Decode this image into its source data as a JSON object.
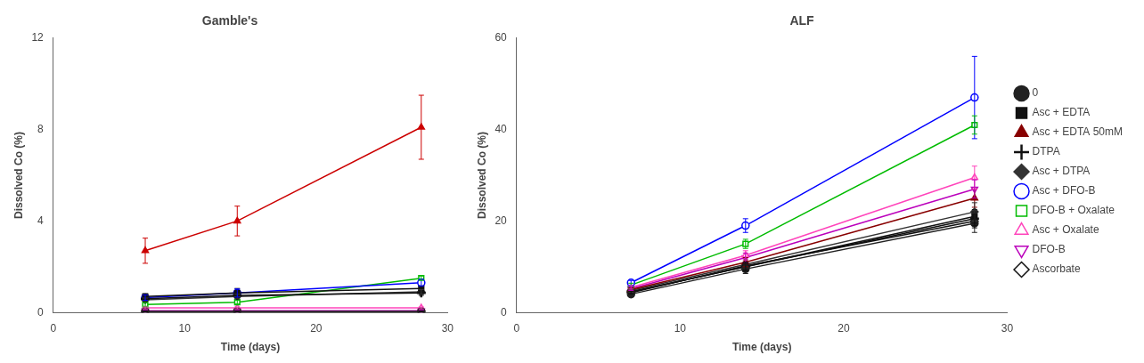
{
  "chart_data": [
    {
      "type": "line",
      "title": "Gamble's",
      "x_label": "Time (days)",
      "y_label": "Dissolved Co (%)",
      "xlim": [
        0,
        30
      ],
      "ylim": [
        0,
        12
      ],
      "xticks": [
        0,
        10,
        20,
        30
      ],
      "yticks": [
        0,
        4,
        8,
        12
      ],
      "grid": false,
      "x": [
        7,
        14,
        28
      ],
      "series": [
        {
          "name": "0",
          "color": "#222222",
          "marker": "circle",
          "values": [
            0.05,
            0.05,
            0.05
          ],
          "errors": [
            0.02,
            0.02,
            0.02
          ]
        },
        {
          "name": "Asc + EDTA",
          "color": "#111111",
          "marker": "square",
          "values": [
            0.7,
            0.85,
            1.05
          ],
          "errors": [
            0.12,
            0.2,
            0.1
          ]
        },
        {
          "name": "Asc + EDTA 50mM",
          "color": "#cc0000",
          "marker": "triangle",
          "values": [
            2.7,
            4.0,
            8.1
          ],
          "errors": [
            0.55,
            0.65,
            1.4
          ]
        },
        {
          "name": "DTPA",
          "color": "#111111",
          "marker": "plus",
          "values": [
            0.6,
            0.75,
            0.85
          ],
          "errors": [
            0.1,
            0.12,
            0.1
          ]
        },
        {
          "name": "Asc + DTPA",
          "color": "#333333",
          "marker": "diamond",
          "values": [
            0.55,
            0.7,
            0.9
          ],
          "errors": [
            0.08,
            0.1,
            0.1
          ]
        },
        {
          "name": "Asc + DFO-B",
          "color": "#0000ff",
          "marker": "open-circle",
          "values": [
            0.65,
            0.85,
            1.3
          ],
          "errors": [
            0.12,
            0.18,
            0.15
          ]
        },
        {
          "name": "DFO-B + Oxalate",
          "color": "#00bb00",
          "marker": "open-square",
          "values": [
            0.35,
            0.45,
            1.5
          ],
          "errors": [
            0.08,
            0.08,
            0.1
          ]
        },
        {
          "name": "Asc + Oxalate",
          "color": "#ff44bb",
          "marker": "open-triangle",
          "values": [
            0.2,
            0.2,
            0.2
          ],
          "errors": [
            0.04,
            0.04,
            0.04
          ]
        },
        {
          "name": "DFO-B",
          "color": "#bb00bb",
          "marker": "open-triangle-down",
          "values": [
            0.08,
            0.08,
            0.08
          ],
          "errors": [
            0.03,
            0.03,
            0.03
          ]
        },
        {
          "name": "Ascorbate",
          "color": "#111111",
          "marker": "open-diamond",
          "values": [
            0.05,
            0.05,
            0.05
          ],
          "errors": [
            0.02,
            0.02,
            0.02
          ]
        }
      ]
    },
    {
      "type": "line",
      "title": "ALF",
      "x_label": "Time (days)",
      "y_label": "Dissolved Co (%)",
      "xlim": [
        0,
        30
      ],
      "ylim": [
        0,
        60
      ],
      "xticks": [
        0,
        10,
        20,
        30
      ],
      "yticks": [
        0,
        20,
        40,
        60
      ],
      "grid": false,
      "legend": "right",
      "x": [
        7,
        14,
        28
      ],
      "series": [
        {
          "name": "0",
          "color": "#222222",
          "marker": "circle",
          "values": [
            4.0,
            9.5,
            19.5
          ],
          "errors": [
            0.4,
            1.0,
            2.0
          ]
        },
        {
          "name": "Asc + EDTA",
          "color": "#111111",
          "marker": "square",
          "values": [
            4.5,
            10.0,
            21.0
          ],
          "errors": [
            0.4,
            1.0,
            1.5
          ]
        },
        {
          "name": "Asc + EDTA 50mM",
          "color": "#880000",
          "marker": "triangle",
          "values": [
            5.0,
            11.0,
            25.0
          ],
          "errors": [
            0.4,
            1.0,
            2.0
          ]
        },
        {
          "name": "DTPA",
          "color": "#111111",
          "marker": "plus",
          "values": [
            4.5,
            10.0,
            20.5
          ],
          "errors": [
            0.4,
            0.8,
            1.5
          ]
        },
        {
          "name": "Asc + DTPA",
          "color": "#333333",
          "marker": "diamond",
          "values": [
            4.8,
            10.5,
            22.0
          ],
          "errors": [
            0.4,
            1.0,
            2.0
          ]
        },
        {
          "name": "Asc + DFO-B",
          "color": "#0000ff",
          "marker": "open-circle",
          "values": [
            6.5,
            19.0,
            47.0
          ],
          "errors": [
            0.5,
            1.5,
            9.0
          ]
        },
        {
          "name": "DFO-B + Oxalate",
          "color": "#00bb00",
          "marker": "open-square",
          "values": [
            6.0,
            15.0,
            41.0
          ],
          "errors": [
            0.4,
            1.0,
            2.0
          ]
        },
        {
          "name": "Asc + Oxalate",
          "color": "#ff44bb",
          "marker": "open-triangle",
          "values": [
            5.5,
            12.5,
            29.5
          ],
          "errors": [
            0.4,
            1.0,
            2.5
          ]
        },
        {
          "name": "DFO-B",
          "color": "#bb00bb",
          "marker": "open-triangle-down",
          "values": [
            5.2,
            12.0,
            27.0
          ],
          "errors": [
            0.4,
            1.0,
            2.0
          ]
        },
        {
          "name": "Ascorbate",
          "color": "#111111",
          "marker": "open-diamond",
          "values": [
            4.3,
            10.2,
            20.0
          ],
          "errors": [
            0.3,
            0.8,
            1.5
          ]
        }
      ]
    }
  ]
}
